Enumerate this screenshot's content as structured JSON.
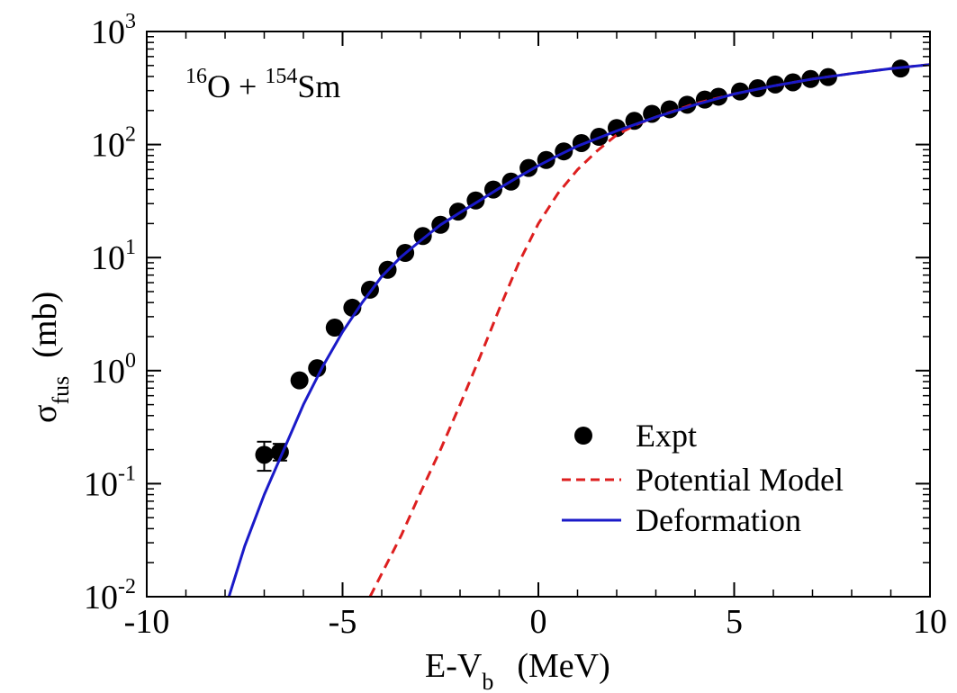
{
  "chart_data": {
    "type": "scatter",
    "xlabel": {
      "main": "E-V",
      "sub": "b",
      "unit": "(MeV)"
    },
    "ylabel": {
      "main": "σ",
      "sub": "fus",
      "unit": "(mb)"
    },
    "xlim": [
      -10,
      10
    ],
    "ylim": [
      0.01,
      1000
    ],
    "yscale": "log",
    "x_ticks": [
      "-10",
      "-5",
      "0",
      "5",
      "10"
    ],
    "x_tick_values": [
      -10,
      -5,
      0,
      5,
      10
    ],
    "y_tick_exponents": [
      "-2",
      "-1",
      "0",
      "1",
      "2",
      "3"
    ],
    "y_tick_base": "10",
    "annotation": {
      "mass1": "16",
      "el1": "O",
      "plus": " + ",
      "mass2": "154",
      "el2": "Sm"
    },
    "legend": {
      "position": "lower-right",
      "entries": [
        "Expt",
        "Potential Model",
        "Deformation"
      ]
    },
    "colors": {
      "expt": "#000000",
      "potential": "#dd1f1f",
      "deformation": "#1a1ac8"
    },
    "series": [
      {
        "name": "Expt",
        "kind": "points",
        "points": [
          [
            -7.0,
            0.18
          ],
          [
            -6.6,
            0.19
          ],
          [
            -6.1,
            0.82
          ],
          [
            -5.65,
            1.05
          ],
          [
            -5.2,
            2.4
          ],
          [
            -4.75,
            3.6
          ],
          [
            -4.3,
            5.2
          ],
          [
            -3.85,
            7.8
          ],
          [
            -3.4,
            11.0
          ],
          [
            -2.95,
            15.5
          ],
          [
            -2.5,
            19.5
          ],
          [
            -2.05,
            25.5
          ],
          [
            -1.6,
            32.0
          ],
          [
            -1.15,
            40.0
          ],
          [
            -0.7,
            47.0
          ],
          [
            -0.25,
            62.0
          ],
          [
            0.2,
            73.0
          ],
          [
            0.65,
            87.0
          ],
          [
            1.1,
            103.0
          ],
          [
            1.55,
            117.0
          ],
          [
            2.0,
            140.0
          ],
          [
            2.45,
            162.0
          ],
          [
            2.9,
            187.0
          ],
          [
            3.35,
            205.0
          ],
          [
            3.8,
            225.0
          ],
          [
            4.25,
            250.0
          ],
          [
            4.6,
            265.0
          ],
          [
            5.15,
            295.0
          ],
          [
            5.6,
            315.0
          ],
          [
            6.05,
            340.0
          ],
          [
            6.5,
            355.0
          ],
          [
            6.95,
            380.0
          ],
          [
            7.4,
            395.0
          ],
          [
            9.25,
            470.0
          ]
        ],
        "error_bars": [
          {
            "x": -7.0,
            "low": 0.13,
            "high": 0.235
          },
          {
            "x": -6.6,
            "low": 0.16,
            "high": 0.225
          }
        ]
      },
      {
        "name": "Potential Model",
        "kind": "dashed-line",
        "points": [
          [
            -4.3,
            0.01
          ],
          [
            -3.5,
            0.035
          ],
          [
            -3.0,
            0.085
          ],
          [
            -2.5,
            0.2
          ],
          [
            -2.0,
            0.5
          ],
          [
            -1.5,
            1.3
          ],
          [
            -1.0,
            3.5
          ],
          [
            -0.5,
            9.0
          ],
          [
            0.0,
            20.0
          ],
          [
            0.5,
            37.0
          ],
          [
            1.0,
            60.0
          ],
          [
            1.5,
            88.0
          ],
          [
            2.0,
            122.0
          ],
          [
            2.5,
            150.0
          ],
          [
            3.0,
            175.0
          ],
          [
            4.0,
            230.0
          ],
          [
            5.0,
            280.0
          ],
          [
            6.0,
            330.0
          ],
          [
            7.0,
            380.0
          ],
          [
            8.0,
            425.0
          ],
          [
            9.0,
            470.0
          ],
          [
            10.0,
            510.0
          ]
        ]
      },
      {
        "name": "Deformation",
        "kind": "solid-line",
        "points": [
          [
            -7.9,
            0.01
          ],
          [
            -7.5,
            0.028
          ],
          [
            -7.0,
            0.08
          ],
          [
            -6.5,
            0.2
          ],
          [
            -6.0,
            0.5
          ],
          [
            -5.5,
            1.1
          ],
          [
            -5.0,
            2.2
          ],
          [
            -4.5,
            4.0
          ],
          [
            -4.0,
            6.8
          ],
          [
            -3.5,
            10.2
          ],
          [
            -3.0,
            14.2
          ],
          [
            -2.5,
            19.5
          ],
          [
            -2.0,
            25.0
          ],
          [
            -1.5,
            32.0
          ],
          [
            -1.0,
            41.0
          ],
          [
            -0.5,
            52.0
          ],
          [
            0.0,
            65.0
          ],
          [
            0.5,
            80.0
          ],
          [
            1.0,
            97.0
          ],
          [
            1.5,
            113.0
          ],
          [
            2.0,
            132.0
          ],
          [
            2.5,
            152.0
          ],
          [
            3.0,
            175.0
          ],
          [
            4.0,
            225.0
          ],
          [
            5.0,
            280.0
          ],
          [
            6.0,
            330.0
          ],
          [
            7.0,
            380.0
          ],
          [
            8.0,
            425.0
          ],
          [
            9.0,
            470.0
          ],
          [
            10.0,
            510.0
          ]
        ]
      }
    ]
  }
}
